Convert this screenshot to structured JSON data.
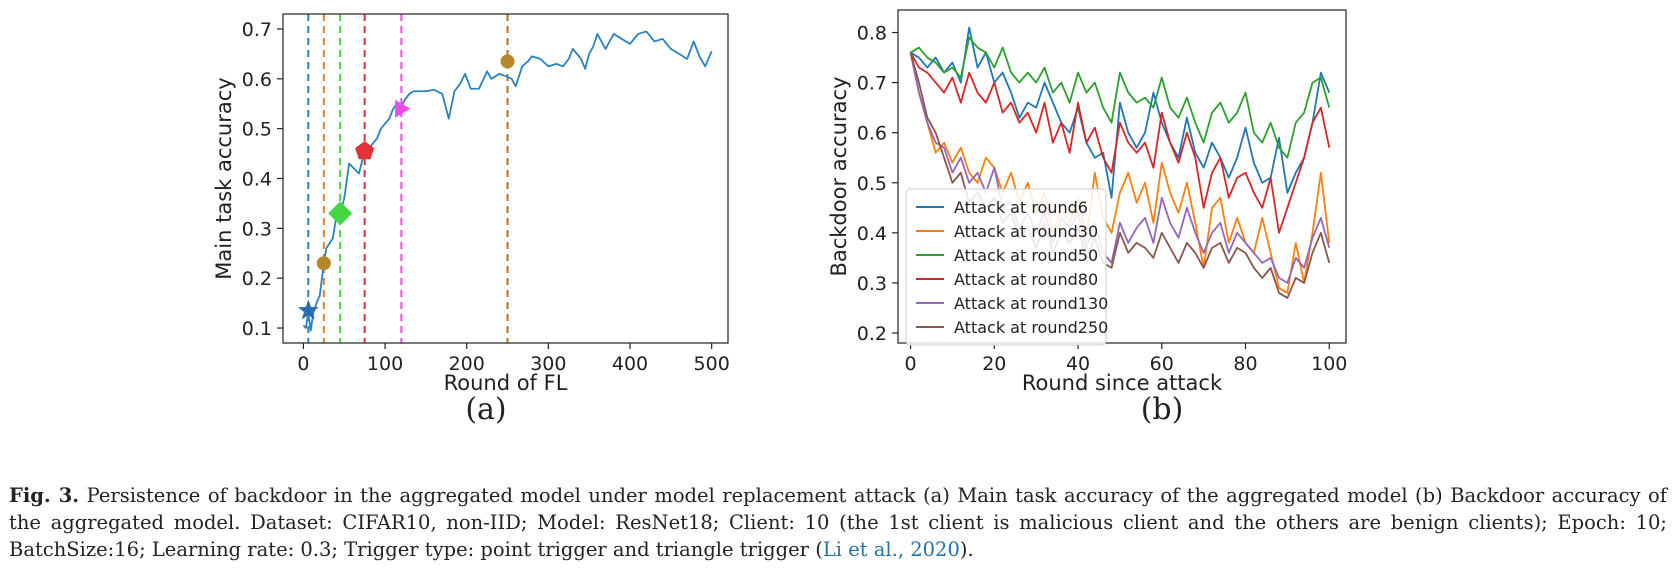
{
  "chart_data": [
    {
      "panel_label": "(a)",
      "type": "line",
      "xlabel": "Round of FL",
      "ylabel": "Main task accuracy",
      "xlim": [
        -25,
        520
      ],
      "ylim": [
        0.07,
        0.73
      ],
      "xticks": [
        0,
        100,
        200,
        300,
        400,
        500
      ],
      "yticks": [
        0.1,
        0.2,
        0.3,
        0.4,
        0.5,
        0.6,
        0.7
      ],
      "grid": false,
      "line_color": "#2b82c1",
      "x": [
        0,
        3,
        6,
        9,
        12,
        16,
        20,
        25,
        28,
        32,
        36,
        40,
        45,
        50,
        56,
        62,
        68,
        75,
        80,
        85,
        90,
        95,
        100,
        105,
        110,
        115,
        120,
        125,
        130,
        135,
        140,
        150,
        160,
        170,
        178,
        185,
        192,
        198,
        205,
        215,
        225,
        230,
        240,
        248,
        255,
        260,
        268,
        275,
        280,
        290,
        300,
        310,
        318,
        325,
        330,
        340,
        345,
        350,
        355,
        360,
        370,
        380,
        390,
        400,
        410,
        420,
        430,
        440,
        450,
        460,
        470,
        478,
        485,
        492,
        500
      ],
      "y": [
        0.105,
        0.1,
        0.13,
        0.095,
        0.13,
        0.15,
        0.165,
        0.23,
        0.26,
        0.27,
        0.28,
        0.32,
        0.33,
        0.36,
        0.43,
        0.42,
        0.41,
        0.455,
        0.46,
        0.47,
        0.48,
        0.5,
        0.51,
        0.52,
        0.54,
        0.55,
        0.545,
        0.56,
        0.57,
        0.575,
        0.575,
        0.575,
        0.578,
        0.57,
        0.52,
        0.575,
        0.59,
        0.61,
        0.58,
        0.58,
        0.615,
        0.6,
        0.61,
        0.605,
        0.6,
        0.585,
        0.625,
        0.635,
        0.645,
        0.64,
        0.625,
        0.63,
        0.625,
        0.64,
        0.66,
        0.64,
        0.62,
        0.65,
        0.665,
        0.69,
        0.66,
        0.69,
        0.68,
        0.67,
        0.69,
        0.695,
        0.675,
        0.68,
        0.66,
        0.65,
        0.64,
        0.675,
        0.645,
        0.625,
        0.655
      ],
      "vlines": [
        {
          "x": 6,
          "color": "#2b82c1"
        },
        {
          "x": 25,
          "color": "#e67e22"
        },
        {
          "x": 45,
          "color": "#43d843"
        },
        {
          "x": 75,
          "color": "#e0343a"
        },
        {
          "x": 120,
          "color": "#e94ee9"
        },
        {
          "x": 250,
          "color": "#c66b1d"
        }
      ],
      "markers": [
        {
          "x": 6,
          "y": 0.135,
          "shape": "star",
          "color": "#2b6cb0"
        },
        {
          "x": 25,
          "y": 0.23,
          "shape": "circle",
          "color": "#b8862a"
        },
        {
          "x": 45,
          "y": 0.33,
          "shape": "diamond",
          "color": "#43d843"
        },
        {
          "x": 75,
          "y": 0.455,
          "shape": "pentagon",
          "color": "#e0343a"
        },
        {
          "x": 120,
          "y": 0.54,
          "shape": "triangle-right",
          "color": "#e94ee9"
        },
        {
          "x": 250,
          "y": 0.635,
          "shape": "circle",
          "color": "#b8862a"
        }
      ]
    },
    {
      "panel_label": "(b)",
      "type": "line",
      "xlabel": "Round since attack",
      "ylabel": "Backdoor accuracy",
      "xlim": [
        -3,
        104
      ],
      "ylim": [
        0.18,
        0.845
      ],
      "xticks": [
        0,
        20,
        40,
        60,
        80,
        100
      ],
      "yticks": [
        0.2,
        0.3,
        0.4,
        0.5,
        0.6,
        0.7,
        0.8
      ],
      "grid": false,
      "legend_position": "lower-left",
      "x": [
        0,
        2,
        4,
        6,
        8,
        10,
        12,
        14,
        16,
        18,
        20,
        22,
        24,
        26,
        28,
        30,
        32,
        34,
        36,
        38,
        40,
        42,
        44,
        46,
        48,
        50,
        52,
        54,
        56,
        58,
        60,
        62,
        64,
        66,
        68,
        70,
        72,
        74,
        76,
        78,
        80,
        82,
        84,
        86,
        88,
        90,
        92,
        94,
        96,
        98,
        100
      ],
      "series": [
        {
          "name": "Attack at round6",
          "color": "#1f77b4",
          "values": [
            0.76,
            0.75,
            0.73,
            0.75,
            0.72,
            0.74,
            0.7,
            0.81,
            0.73,
            0.76,
            0.7,
            0.72,
            0.68,
            0.63,
            0.66,
            0.65,
            0.7,
            0.66,
            0.62,
            0.6,
            0.65,
            0.58,
            0.55,
            0.56,
            0.47,
            0.66,
            0.6,
            0.57,
            0.6,
            0.68,
            0.62,
            0.58,
            0.55,
            0.63,
            0.56,
            0.53,
            0.58,
            0.55,
            0.51,
            0.55,
            0.61,
            0.54,
            0.5,
            0.51,
            0.59,
            0.48,
            0.52,
            0.55,
            0.62,
            0.72,
            0.68
          ]
        },
        {
          "name": "Attack at round30",
          "color": "#ff7f0e",
          "values": [
            0.76,
            0.68,
            0.62,
            0.56,
            0.58,
            0.54,
            0.57,
            0.52,
            0.5,
            0.55,
            0.53,
            0.48,
            0.52,
            0.46,
            0.5,
            0.44,
            0.48,
            0.4,
            0.45,
            0.42,
            0.47,
            0.39,
            0.52,
            0.43,
            0.4,
            0.48,
            0.52,
            0.46,
            0.5,
            0.42,
            0.54,
            0.48,
            0.44,
            0.5,
            0.42,
            0.33,
            0.45,
            0.47,
            0.38,
            0.43,
            0.38,
            0.36,
            0.43,
            0.36,
            0.29,
            0.28,
            0.38,
            0.3,
            0.4,
            0.52,
            0.38
          ]
        },
        {
          "name": "Attack at round50",
          "color": "#2ca02c",
          "values": [
            0.76,
            0.77,
            0.75,
            0.74,
            0.72,
            0.73,
            0.71,
            0.79,
            0.77,
            0.76,
            0.73,
            0.77,
            0.72,
            0.7,
            0.72,
            0.7,
            0.73,
            0.68,
            0.7,
            0.66,
            0.72,
            0.68,
            0.7,
            0.65,
            0.62,
            0.72,
            0.68,
            0.66,
            0.67,
            0.65,
            0.71,
            0.65,
            0.63,
            0.67,
            0.62,
            0.58,
            0.64,
            0.66,
            0.62,
            0.64,
            0.68,
            0.6,
            0.58,
            0.62,
            0.57,
            0.55,
            0.62,
            0.64,
            0.7,
            0.71,
            0.65
          ]
        },
        {
          "name": "Attack at round80",
          "color": "#d62728",
          "values": [
            0.76,
            0.73,
            0.72,
            0.7,
            0.68,
            0.71,
            0.66,
            0.72,
            0.68,
            0.66,
            0.7,
            0.64,
            0.66,
            0.62,
            0.64,
            0.6,
            0.66,
            0.58,
            0.62,
            0.56,
            0.66,
            0.58,
            0.61,
            0.55,
            0.52,
            0.62,
            0.58,
            0.56,
            0.58,
            0.53,
            0.64,
            0.58,
            0.54,
            0.6,
            0.55,
            0.45,
            0.52,
            0.55,
            0.47,
            0.51,
            0.52,
            0.48,
            0.45,
            0.51,
            0.4,
            0.45,
            0.5,
            0.55,
            0.62,
            0.65,
            0.57
          ]
        },
        {
          "name": "Attack at round130",
          "color": "#9467bd",
          "values": [
            0.76,
            0.68,
            0.62,
            0.58,
            0.57,
            0.52,
            0.55,
            0.5,
            0.52,
            0.48,
            0.53,
            0.45,
            0.46,
            0.41,
            0.44,
            0.4,
            0.44,
            0.38,
            0.43,
            0.41,
            0.44,
            0.37,
            0.42,
            0.36,
            0.34,
            0.42,
            0.38,
            0.41,
            0.43,
            0.38,
            0.47,
            0.42,
            0.39,
            0.45,
            0.4,
            0.36,
            0.4,
            0.42,
            0.36,
            0.4,
            0.38,
            0.36,
            0.34,
            0.35,
            0.31,
            0.3,
            0.35,
            0.33,
            0.39,
            0.43,
            0.37
          ]
        },
        {
          "name": "Attack at round250",
          "color": "#8c564b",
          "values": [
            0.76,
            0.7,
            0.63,
            0.6,
            0.55,
            0.5,
            0.52,
            0.46,
            0.48,
            0.45,
            0.47,
            0.42,
            0.44,
            0.39,
            0.41,
            0.37,
            0.42,
            0.36,
            0.4,
            0.38,
            0.41,
            0.35,
            0.39,
            0.34,
            0.33,
            0.4,
            0.36,
            0.38,
            0.37,
            0.35,
            0.4,
            0.37,
            0.34,
            0.38,
            0.36,
            0.33,
            0.37,
            0.38,
            0.34,
            0.37,
            0.36,
            0.33,
            0.31,
            0.33,
            0.28,
            0.27,
            0.31,
            0.3,
            0.36,
            0.4,
            0.34
          ]
        }
      ]
    }
  ],
  "caption": {
    "fig_label": "Fig. 3.",
    "text": " Persistence of backdoor in the aggregated model under model replacement attack (a) Main task accuracy of the aggregated model (b) Backdoor accuracy of the aggregated model. Dataset: CIFAR10, non-IID; Model: ResNet18; Client: 10 (the 1st client is malicious client and the others are benign clients); Epoch: 10; BatchSize:16; Learning rate: 0.3; Trigger type: point trigger and triangle trigger (",
    "citation": "Li et al., 2020",
    "tail": ")."
  }
}
